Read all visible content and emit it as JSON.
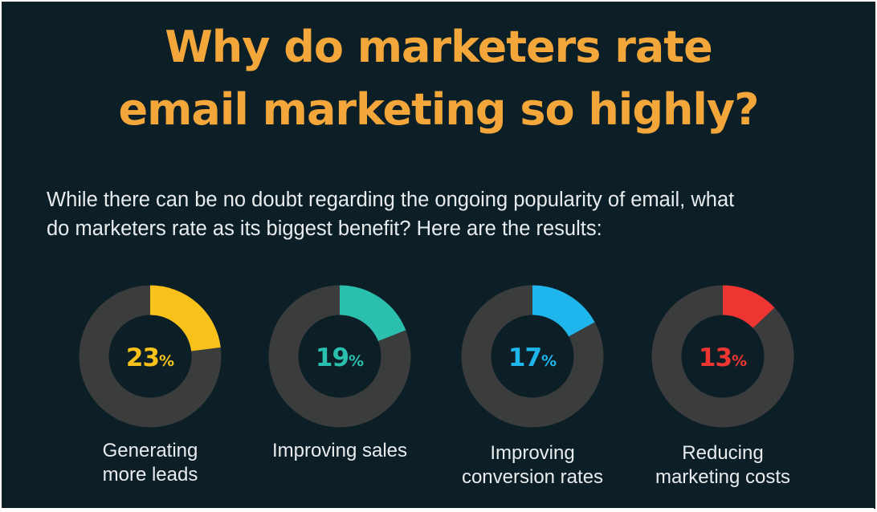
{
  "title": {
    "line1": "Why do marketers rate",
    "line2": "email marketing so highly?"
  },
  "intro": {
    "line1": "While there can be no doubt regarding the ongoing popularity of email, what",
    "line2": "do marketers rate as its biggest benefit? Here are the results:"
  },
  "colors": {
    "background": "#0c1f27",
    "title": "#f3a73a",
    "track": "#3a3d3c",
    "text": "#e9ecee"
  },
  "chart_data": {
    "type": "pie",
    "unit": "%",
    "items": [
      {
        "label_lines": [
          "Generating",
          "more leads"
        ],
        "value": 23,
        "color": "#f8c21a"
      },
      {
        "label_lines": [
          "Improving sales"
        ],
        "value": 19,
        "color": "#2bbfae"
      },
      {
        "label_lines": [
          "Improving",
          "conversion rates"
        ],
        "value": 17,
        "color": "#1fb6ee"
      },
      {
        "label_lines": [
          "Reducing",
          "marketing costs"
        ],
        "value": 13,
        "color": "#ee3532"
      }
    ]
  }
}
